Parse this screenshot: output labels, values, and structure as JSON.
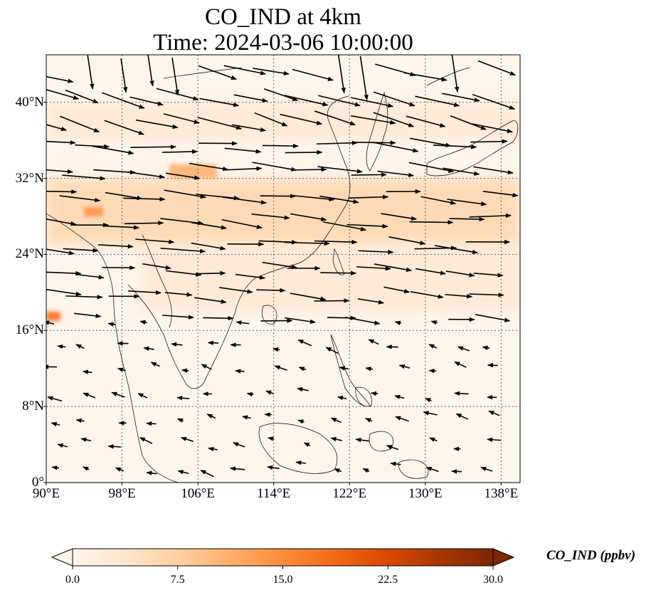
{
  "title": {
    "line1": "CO_IND at 4km",
    "line2": "Time: 2024-03-06 10:00:00"
  },
  "map": {
    "lon_range": [
      90,
      140
    ],
    "lat_range": [
      0,
      45
    ],
    "lat_ticks": [
      {
        "value": 0,
        "label": "0°"
      },
      {
        "value": 8,
        "label": "8°N"
      },
      {
        "value": 16,
        "label": "16°N"
      },
      {
        "value": 24,
        "label": "24°N"
      },
      {
        "value": 32,
        "label": "32°N"
      },
      {
        "value": 40,
        "label": "40°N"
      }
    ],
    "lon_ticks": [
      {
        "value": 90,
        "label": "90°E"
      },
      {
        "value": 98,
        "label": "98°E"
      },
      {
        "value": 106,
        "label": "106°E"
      },
      {
        "value": 114,
        "label": "114°E"
      },
      {
        "value": 122,
        "label": "122°E"
      },
      {
        "value": 130,
        "label": "130°E"
      },
      {
        "value": 138,
        "label": "138°E"
      }
    ],
    "gridlines": true,
    "plume_bands": [
      {
        "lon": [
          90,
          140
        ],
        "lat": [
          36,
          40
        ],
        "level": 5
      },
      {
        "lon": [
          90,
          140
        ],
        "lat": [
          25,
          32
        ],
        "level": 6
      },
      {
        "lon": [
          100,
          140
        ],
        "lat": [
          18,
          25
        ],
        "level": 5
      },
      {
        "lon": [
          103,
          108
        ],
        "lat": [
          32,
          33.5
        ],
        "level": 10
      },
      {
        "lon": [
          94,
          96
        ],
        "lat": [
          28,
          29
        ],
        "level": 16
      },
      {
        "lon": [
          90,
          91.5
        ],
        "lat": [
          17,
          18
        ],
        "level": 18
      }
    ]
  },
  "colorbar": {
    "label": "CO_IND (ppbv)",
    "min": 0,
    "max": 30,
    "ticks": [
      "0.0",
      "7.5",
      "15.0",
      "22.5",
      "30.0"
    ],
    "extend": "both",
    "colormap": [
      "#fff5eb",
      "#fee6ce",
      "#fdd0a2",
      "#fdae6b",
      "#fd8d3c",
      "#f16913",
      "#d94801",
      "#a63603",
      "#7f2704"
    ]
  }
}
